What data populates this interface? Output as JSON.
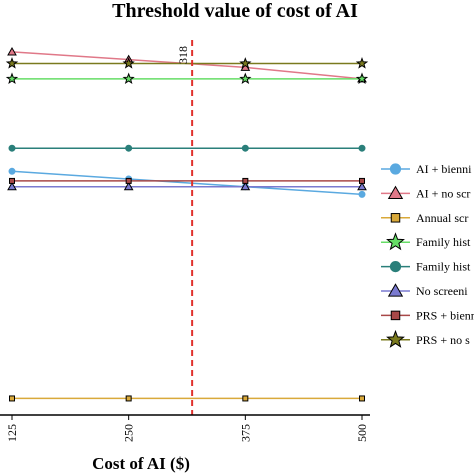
{
  "chart_data": {
    "type": "line",
    "title": "Threshold value of cost of AI",
    "xlabel": "Cost of AI ($)",
    "ylabel": "",
    "x": [
      125,
      250,
      375,
      500
    ],
    "x_tick_labels": [
      "125",
      "250",
      "375",
      "500"
    ],
    "xlim": [
      115,
      510
    ],
    "y_visible_range": [
      0,
      100
    ],
    "threshold": {
      "value": 318,
      "label": "318",
      "color": "#e0312c"
    },
    "grid": false,
    "legend_position": "right",
    "series": [
      {
        "name": "AI + bienni",
        "color": "#5aa9e0",
        "marker": "circle",
        "values": [
          62,
          60,
          58,
          56
        ]
      },
      {
        "name": "AI + no scr",
        "color": "#e07888",
        "marker": "triangle-up",
        "values": [
          93,
          91,
          89,
          86
        ]
      },
      {
        "name": "Annual scr",
        "color": "#d9a93a",
        "marker": "square",
        "values": [
          3,
          3,
          3,
          3
        ]
      },
      {
        "name": "Family hist",
        "color": "#66dd66",
        "marker": "star",
        "values": [
          86,
          86,
          86,
          86
        ]
      },
      {
        "name": "Family hist",
        "color": "#2a7f7a",
        "marker": "circle",
        "values": [
          68,
          68,
          68,
          68
        ]
      },
      {
        "name": "No screeni",
        "color": "#7a7ad0",
        "marker": "triangle-up",
        "values": [
          58,
          58,
          58,
          58
        ]
      },
      {
        "name": "PRS + bienn",
        "color": "#a84848",
        "marker": "square",
        "values": [
          59.5,
          59.5,
          59.5,
          59.5
        ]
      },
      {
        "name": "PRS + no s",
        "color": "#7a7a1e",
        "marker": "star",
        "values": [
          90,
          90,
          90,
          90
        ]
      }
    ]
  }
}
